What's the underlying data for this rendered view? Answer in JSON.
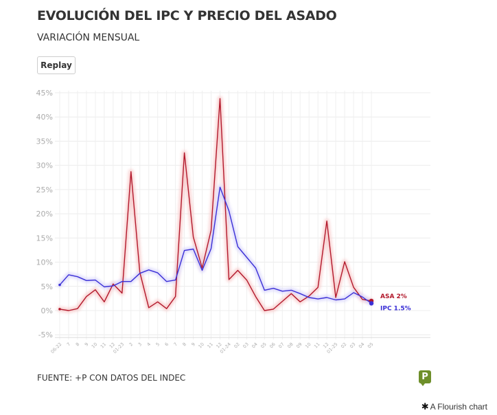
{
  "header": {
    "title": "EVOLUCIÓN DEL IPC Y PRECIO DEL ASADO",
    "subtitle": "VARIACIÓN MENSUAL",
    "replay_label": "Replay"
  },
  "footer": {
    "source": "FUENTE: +P CON DATOS DEL INDEC",
    "logo_letter": "P",
    "flourish_icon": "asterisk-icon",
    "flourish_label": "A Flourish chart"
  },
  "chart_data": {
    "type": "line",
    "title": "EVOLUCIÓN DEL IPC Y PRECIO DEL ASADO",
    "subtitle": "VARIACIÓN MENSUAL",
    "xlabel": "",
    "ylabel": "",
    "ylim": [
      -5,
      45
    ],
    "yticks": [
      -5,
      0,
      5,
      10,
      15,
      20,
      25,
      30,
      35,
      40,
      45
    ],
    "ytick_labels": [
      "-5%",
      "0%",
      "5%",
      "10%",
      "15%",
      "20%",
      "25%",
      "30%",
      "35%",
      "40%",
      "45%"
    ],
    "grid": true,
    "legend": "end-labels",
    "categories": [
      "06-22",
      "7",
      "8",
      "9",
      "10",
      "11",
      "12",
      "01-23",
      "2",
      "3",
      "4",
      "5",
      "6",
      "7",
      "8",
      "9",
      "10",
      "11",
      "12",
      "01-24",
      "02",
      "03",
      "04",
      "05",
      "06",
      "07",
      "08",
      "09",
      "10",
      "11",
      "12",
      "01-25",
      "02",
      "03",
      "04",
      "05"
    ],
    "series": [
      {
        "name": "ASA",
        "end_label": "ASA 2%",
        "color": "#b2182b",
        "glow": "#f7c6c6",
        "values": [
          0.3,
          0.0,
          0.4,
          2.9,
          4.3,
          1.8,
          5.5,
          3.6,
          28.7,
          7.9,
          0.6,
          1.8,
          0.4,
          2.9,
          32.6,
          15.2,
          8.8,
          16.6,
          43.8,
          6.4,
          8.3,
          6.3,
          2.9,
          0.0,
          0.3,
          1.9,
          3.5,
          1.8,
          3.0,
          4.8,
          18.5,
          2.7,
          10.1,
          4.8,
          2.3,
          2.0
        ]
      },
      {
        "name": "IPC",
        "end_label": "IPC 1.5%",
        "color": "#3a2fd6",
        "glow": "#d6d3fb",
        "values": [
          5.3,
          7.4,
          7.0,
          6.2,
          6.3,
          4.9,
          5.1,
          6.0,
          6.0,
          7.7,
          8.4,
          7.8,
          6.0,
          6.3,
          12.4,
          12.7,
          8.3,
          12.8,
          25.5,
          20.6,
          13.2,
          11.0,
          8.8,
          4.2,
          4.6,
          4.0,
          4.2,
          3.5,
          2.7,
          2.4,
          2.7,
          2.2,
          2.4,
          3.7,
          2.8,
          1.5
        ]
      }
    ]
  }
}
